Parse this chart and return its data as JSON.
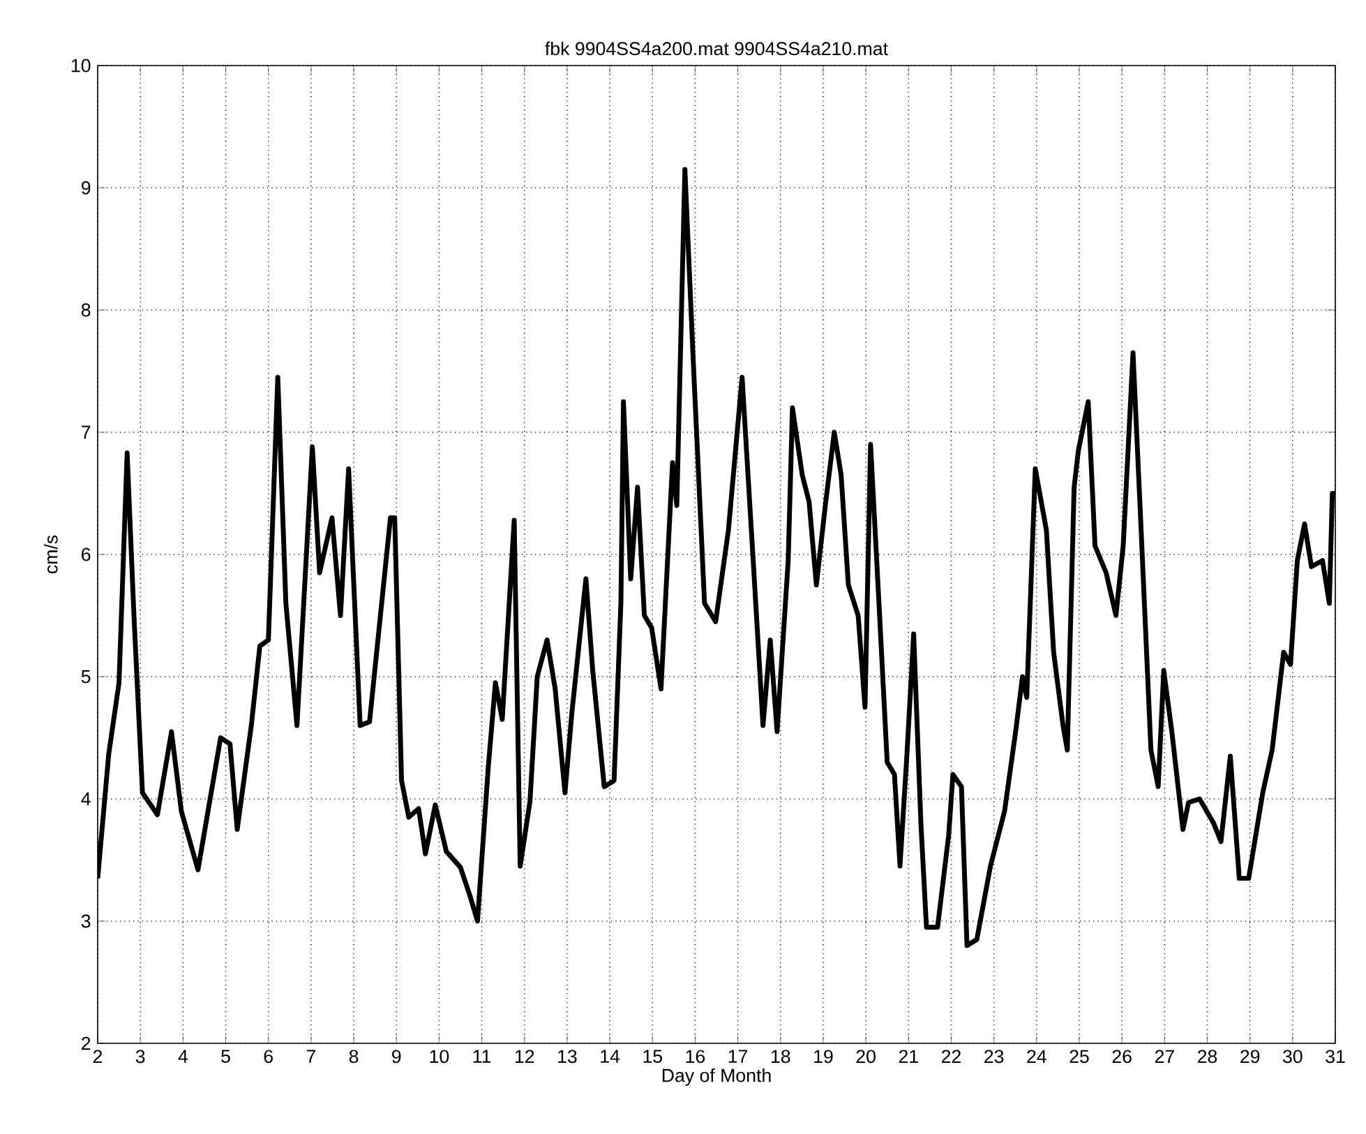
{
  "chart_data": {
    "type": "line",
    "title": "fbk 9904SS4a200.mat 9904SS4a210.mat",
    "xlabel": "Day of Month",
    "ylabel": "cm/s",
    "xlim": [
      2,
      31
    ],
    "ylim": [
      2,
      10
    ],
    "xticks": [
      2,
      3,
      4,
      5,
      6,
      7,
      8,
      9,
      10,
      11,
      12,
      13,
      14,
      15,
      16,
      17,
      18,
      19,
      20,
      21,
      22,
      23,
      24,
      25,
      26,
      27,
      28,
      29,
      30,
      31
    ],
    "yticks": [
      2,
      3,
      4,
      5,
      6,
      7,
      8,
      9,
      10
    ],
    "grid": true,
    "line_style": "solid",
    "marker": "none",
    "series": [
      {
        "color": "#000000",
        "x": [
          2,
          2.26,
          2.5,
          2.69,
          2.85,
          3.05,
          3.4,
          3.73,
          3.96,
          4.35,
          4.88,
          5.1,
          5.27,
          5.6,
          5.8,
          6.0,
          6.22,
          6.41,
          6.67,
          7.03,
          7.2,
          7.49,
          7.69,
          7.88,
          8.15,
          8.37,
          8.86,
          8.96,
          9.12,
          9.29,
          9.52,
          9.68,
          9.91,
          10.17,
          10.5,
          10.73,
          10.9,
          11.15,
          11.32,
          11.48,
          11.76,
          11.9,
          12.13,
          12.3,
          12.53,
          12.72,
          12.95,
          13.11,
          13.44,
          13.6,
          13.87,
          14.1,
          14.26,
          14.32,
          14.49,
          14.65,
          14.81,
          14.98,
          15.2,
          15.47,
          15.57,
          15.76,
          15.96,
          16.22,
          16.48,
          16.78,
          17.1,
          17.36,
          17.59,
          17.76,
          17.92,
          18.18,
          18.28,
          18.51,
          18.67,
          18.84,
          19.06,
          19.26,
          19.42,
          19.59,
          19.82,
          19.98,
          20.11,
          20.3,
          20.5,
          20.67,
          20.8,
          20.96,
          21.12,
          21.29,
          21.42,
          21.68,
          21.94,
          22.04,
          22.24,
          22.37,
          22.6,
          22.92,
          23.25,
          23.51,
          23.67,
          23.77,
          23.97,
          24.23,
          24.4,
          24.62,
          24.72,
          24.88,
          24.98,
          25.21,
          25.37,
          25.63,
          25.86,
          26.03,
          26.26,
          26.45,
          26.68,
          26.85,
          26.98,
          27.17,
          27.43,
          27.56,
          27.82,
          28.15,
          28.32,
          28.54,
          28.75,
          28.97,
          29.3,
          29.52,
          29.79,
          29.95,
          30.11,
          30.28,
          30.44,
          30.7,
          30.86,
          30.93,
          31
        ],
        "values": [
          3.35,
          4.37,
          4.95,
          6.83,
          5.5,
          4.05,
          3.87,
          4.55,
          3.9,
          3.42,
          4.5,
          4.45,
          3.75,
          4.6,
          5.25,
          5.3,
          7.45,
          5.6,
          4.6,
          6.88,
          5.85,
          6.3,
          5.5,
          6.7,
          4.6,
          4.63,
          6.3,
          6.3,
          4.15,
          3.85,
          3.92,
          3.55,
          3.95,
          3.57,
          3.44,
          3.2,
          3.0,
          4.25,
          4.95,
          4.65,
          6.28,
          3.45,
          3.98,
          5.0,
          5.3,
          4.9,
          4.05,
          4.7,
          5.8,
          5.05,
          4.1,
          4.15,
          5.6,
          7.25,
          5.8,
          6.55,
          5.5,
          5.4,
          4.9,
          6.75,
          6.4,
          9.15,
          7.55,
          5.6,
          5.45,
          6.2,
          7.45,
          5.95,
          4.6,
          5.3,
          4.55,
          5.95,
          7.2,
          6.65,
          6.43,
          5.75,
          6.43,
          7.0,
          6.65,
          5.75,
          5.5,
          4.75,
          6.9,
          5.65,
          4.3,
          4.2,
          3.45,
          4.35,
          5.35,
          3.8,
          2.95,
          2.95,
          3.7,
          4.2,
          4.1,
          2.8,
          2.85,
          3.45,
          3.9,
          4.55,
          5.0,
          4.83,
          6.7,
          6.2,
          5.2,
          4.6,
          4.4,
          6.55,
          6.85,
          7.25,
          6.07,
          5.85,
          5.5,
          6.07,
          7.65,
          6.2,
          4.4,
          4.1,
          5.05,
          4.55,
          3.75,
          3.97,
          4.0,
          3.8,
          3.65,
          4.35,
          3.35,
          3.35,
          4.05,
          4.4,
          5.2,
          5.1,
          5.95,
          6.25,
          5.9,
          5.95,
          5.6,
          6.5,
          6.5
        ]
      }
    ]
  }
}
